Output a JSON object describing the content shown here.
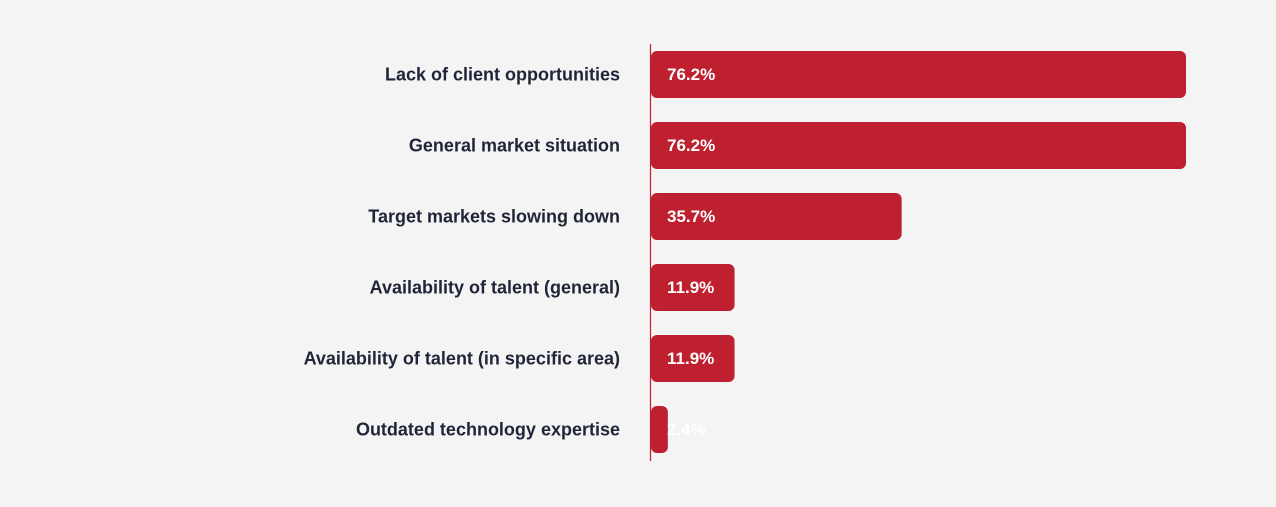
{
  "chart_data": {
    "type": "bar",
    "orientation": "horizontal",
    "categories": [
      "Lack of client opportunities",
      "General market situation",
      "Target markets slowing down",
      "Availability of talent (general)",
      "Availability of talent (in specific area)",
      "Outdated technology expertise"
    ],
    "values": [
      76.2,
      76.2,
      35.7,
      11.9,
      11.9,
      2.4
    ],
    "value_labels": [
      "76.2%",
      "76.2%",
      "35.7%",
      "11.9%",
      "11.9%",
      "2.4%"
    ],
    "unit": "%",
    "title": "",
    "xlabel": "",
    "ylabel": "",
    "xlim": [
      0,
      100
    ],
    "grid": false,
    "legend": "none",
    "colors": {
      "bar": "#be202f",
      "label_text": "#1f2437",
      "value_text": "#ffffff",
      "axis_line": "#be202f",
      "background": "#f4f4f4"
    }
  }
}
